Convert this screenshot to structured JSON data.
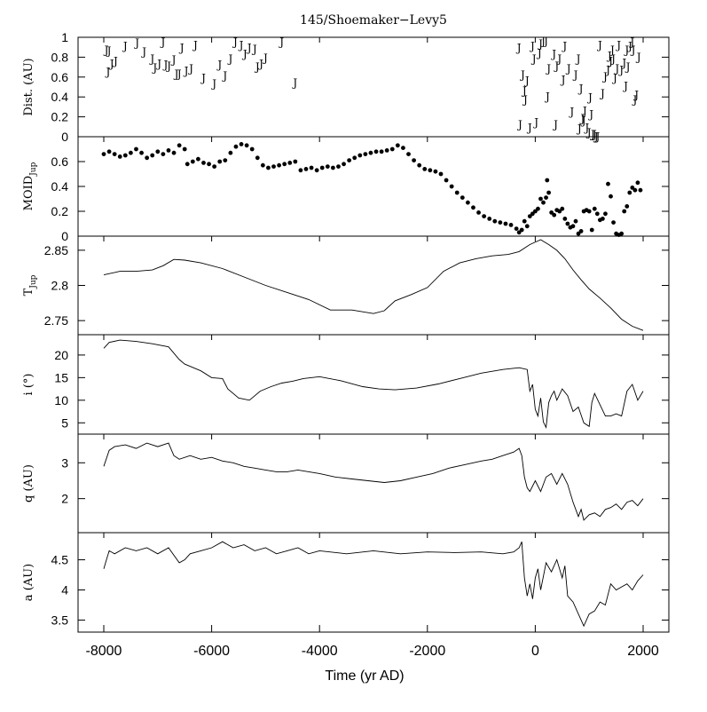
{
  "title": "145/Shoemaker−Levy5",
  "xlabel": "Time (yr AD)",
  "x_ticks": [
    "-8000",
    "-6000",
    "-4000",
    "-2000",
    "0",
    "2000"
  ],
  "chart_data": [
    {
      "type": "scatter",
      "panel": "dist",
      "ylabel": "Dist. (AU)",
      "xlim": [
        -8000,
        2000
      ],
      "ylim": [
        0,
        1
      ],
      "yticks": [
        "0",
        "0.2",
        "0.4",
        "0.6",
        "0.8",
        "1"
      ],
      "marker_label": "J",
      "points": [
        [
          -7950,
          0.88
        ],
        [
          -7900,
          0.87
        ],
        [
          -7920,
          0.66
        ],
        [
          -7850,
          0.74
        ],
        [
          -7780,
          0.77
        ],
        [
          -7600,
          0.92
        ],
        [
          -7380,
          0.95
        ],
        [
          -7250,
          0.86
        ],
        [
          -7100,
          0.79
        ],
        [
          -7050,
          0.7
        ],
        [
          -6970,
          0.74
        ],
        [
          -6900,
          0.96
        ],
        [
          -6850,
          0.73
        ],
        [
          -6790,
          0.72
        ],
        [
          -6700,
          0.78
        ],
        [
          -6650,
          0.64
        ],
        [
          -6600,
          0.64
        ],
        [
          -6550,
          0.9
        ],
        [
          -6470,
          0.67
        ],
        [
          -6380,
          0.69
        ],
        [
          -6300,
          0.93
        ],
        [
          -6150,
          0.6
        ],
        [
          -5950,
          0.54
        ],
        [
          -5850,
          0.73
        ],
        [
          -5750,
          0.62
        ],
        [
          -5650,
          0.79
        ],
        [
          -5560,
          0.96
        ],
        [
          -5450,
          0.93
        ],
        [
          -5380,
          0.84
        ],
        [
          -5300,
          0.9
        ],
        [
          -5200,
          0.89
        ],
        [
          -5150,
          0.71
        ],
        [
          -5080,
          0.74
        ],
        [
          -5000,
          0.8
        ],
        [
          -4700,
          0.96
        ],
        [
          -4450,
          0.55
        ],
        [
          -280,
          0.13
        ],
        [
          -300,
          0.9
        ],
        [
          -230,
          0.63
        ],
        [
          -200,
          0.47
        ],
        [
          -180,
          0.38
        ],
        [
          -150,
          0.57
        ],
        [
          -100,
          0.1
        ],
        [
          -50,
          0.92
        ],
        [
          -20,
          0.79
        ],
        [
          20,
          0.15
        ],
        [
          80,
          0.85
        ],
        [
          100,
          0.94
        ],
        [
          150,
          0.97
        ],
        [
          200,
          0.97
        ],
        [
          230,
          0.41
        ],
        [
          250,
          0.69
        ],
        [
          350,
          0.84
        ],
        [
          380,
          0.13
        ],
        [
          400,
          0.72
        ],
        [
          450,
          0.79
        ],
        [
          520,
          0.58
        ],
        [
          550,
          0.92
        ],
        [
          620,
          0.69
        ],
        [
          680,
          0.26
        ],
        [
          750,
          0.63
        ],
        [
          800,
          0.79
        ],
        [
          820,
          0.09
        ],
        [
          850,
          0.49
        ],
        [
          880,
          0.19
        ],
        [
          900,
          0.17
        ],
        [
          920,
          0.27
        ],
        [
          960,
          0.1
        ],
        [
          1000,
          0.05
        ],
        [
          1020,
          0.4
        ],
        [
          1040,
          0.23
        ],
        [
          1070,
          0.03
        ],
        [
          1100,
          0.03
        ],
        [
          1130,
          0.01
        ],
        [
          1160,
          0.01
        ],
        [
          1200,
          0.93
        ],
        [
          1250,
          0.44
        ],
        [
          1300,
          0.61
        ],
        [
          1350,
          0.68
        ],
        [
          1380,
          0.82
        ],
        [
          1400,
          0.77
        ],
        [
          1430,
          0.88
        ],
        [
          1450,
          0.79
        ],
        [
          1480,
          0.6
        ],
        [
          1520,
          0.69
        ],
        [
          1550,
          0.93
        ],
        [
          1600,
          0.68
        ],
        [
          1650,
          0.75
        ],
        [
          1680,
          0.52
        ],
        [
          1700,
          0.88
        ],
        [
          1720,
          0.71
        ],
        [
          1760,
          0.92
        ],
        [
          1800,
          0.96
        ],
        [
          1820,
          0.88
        ],
        [
          1850,
          0.38
        ],
        [
          1880,
          0.43
        ],
        [
          1920,
          0.81
        ]
      ]
    },
    {
      "type": "scatter",
      "panel": "moid",
      "ylabel": "MOID",
      "ylabel_sub": "Jup",
      "xlim": [
        -8000,
        2000
      ],
      "ylim": [
        0,
        0.8
      ],
      "yticks": [
        "0",
        "0.2",
        "0.4",
        "0.6"
      ],
      "points": [
        [
          -8000,
          0.66
        ],
        [
          -7900,
          0.68
        ],
        [
          -7800,
          0.66
        ],
        [
          -7700,
          0.64
        ],
        [
          -7600,
          0.65
        ],
        [
          -7500,
          0.67
        ],
        [
          -7400,
          0.7
        ],
        [
          -7300,
          0.67
        ],
        [
          -7200,
          0.63
        ],
        [
          -7100,
          0.65
        ],
        [
          -7000,
          0.68
        ],
        [
          -6900,
          0.66
        ],
        [
          -6800,
          0.69
        ],
        [
          -6700,
          0.67
        ],
        [
          -6600,
          0.73
        ],
        [
          -6500,
          0.7
        ],
        [
          -6450,
          0.58
        ],
        [
          -6350,
          0.6
        ],
        [
          -6250,
          0.62
        ],
        [
          -6150,
          0.59
        ],
        [
          -6050,
          0.58
        ],
        [
          -5950,
          0.56
        ],
        [
          -5850,
          0.6
        ],
        [
          -5750,
          0.61
        ],
        [
          -5650,
          0.67
        ],
        [
          -5550,
          0.72
        ],
        [
          -5450,
          0.74
        ],
        [
          -5350,
          0.73
        ],
        [
          -5250,
          0.7
        ],
        [
          -5150,
          0.63
        ],
        [
          -5050,
          0.57
        ],
        [
          -4950,
          0.55
        ],
        [
          -4850,
          0.56
        ],
        [
          -4750,
          0.57
        ],
        [
          -4650,
          0.58
        ],
        [
          -4550,
          0.59
        ],
        [
          -4450,
          0.6
        ],
        [
          -4350,
          0.53
        ],
        [
          -4250,
          0.54
        ],
        [
          -4150,
          0.55
        ],
        [
          -4050,
          0.53
        ],
        [
          -3950,
          0.55
        ],
        [
          -3850,
          0.56
        ],
        [
          -3750,
          0.55
        ],
        [
          -3650,
          0.56
        ],
        [
          -3550,
          0.58
        ],
        [
          -3450,
          0.61
        ],
        [
          -3350,
          0.63
        ],
        [
          -3250,
          0.65
        ],
        [
          -3150,
          0.66
        ],
        [
          -3050,
          0.67
        ],
        [
          -2950,
          0.68
        ],
        [
          -2850,
          0.68
        ],
        [
          -2750,
          0.69
        ],
        [
          -2650,
          0.7
        ],
        [
          -2550,
          0.73
        ],
        [
          -2450,
          0.71
        ],
        [
          -2350,
          0.66
        ],
        [
          -2250,
          0.61
        ],
        [
          -2150,
          0.57
        ],
        [
          -2050,
          0.54
        ],
        [
          -1950,
          0.53
        ],
        [
          -1850,
          0.52
        ],
        [
          -1750,
          0.5
        ],
        [
          -1650,
          0.45
        ],
        [
          -1550,
          0.4
        ],
        [
          -1450,
          0.35
        ],
        [
          -1350,
          0.31
        ],
        [
          -1250,
          0.27
        ],
        [
          -1150,
          0.23
        ],
        [
          -1050,
          0.19
        ],
        [
          -950,
          0.16
        ],
        [
          -850,
          0.14
        ],
        [
          -750,
          0.12
        ],
        [
          -650,
          0.11
        ],
        [
          -550,
          0.1
        ],
        [
          -450,
          0.09
        ],
        [
          -350,
          0.06
        ],
        [
          -300,
          0.03
        ],
        [
          -250,
          0.05
        ],
        [
          -200,
          0.12
        ],
        [
          -150,
          0.08
        ],
        [
          -100,
          0.16
        ],
        [
          -50,
          0.18
        ],
        [
          0,
          0.2
        ],
        [
          50,
          0.22
        ],
        [
          100,
          0.3
        ],
        [
          150,
          0.27
        ],
        [
          200,
          0.31
        ],
        [
          220,
          0.45
        ],
        [
          250,
          0.35
        ],
        [
          300,
          0.19
        ],
        [
          350,
          0.17
        ],
        [
          400,
          0.21
        ],
        [
          450,
          0.2
        ],
        [
          500,
          0.22
        ],
        [
          550,
          0.14
        ],
        [
          600,
          0.1
        ],
        [
          650,
          0.07
        ],
        [
          700,
          0.08
        ],
        [
          750,
          0.12
        ],
        [
          800,
          0.02
        ],
        [
          850,
          0.04
        ],
        [
          900,
          0.2
        ],
        [
          950,
          0.21
        ],
        [
          1000,
          0.2
        ],
        [
          1050,
          0.05
        ],
        [
          1100,
          0.22
        ],
        [
          1150,
          0.18
        ],
        [
          1200,
          0.13
        ],
        [
          1250,
          0.14
        ],
        [
          1300,
          0.18
        ],
        [
          1350,
          0.42
        ],
        [
          1400,
          0.32
        ],
        [
          1450,
          0.11
        ],
        [
          1500,
          0.02
        ],
        [
          1550,
          0.01
        ],
        [
          1600,
          0.02
        ],
        [
          1650,
          0.2
        ],
        [
          1700,
          0.24
        ],
        [
          1750,
          0.35
        ],
        [
          1800,
          0.39
        ],
        [
          1850,
          0.37
        ],
        [
          1900,
          0.43
        ],
        [
          1950,
          0.37
        ]
      ]
    },
    {
      "type": "line",
      "panel": "tjup",
      "ylabel": "T",
      "ylabel_sub": "Jup",
      "xlim": [
        -8000,
        2000
      ],
      "ylim": [
        2.73,
        2.87
      ],
      "yticks": [
        "2.75",
        "2.8",
        "2.85"
      ],
      "x": [
        -8000,
        -7700,
        -7400,
        -7100,
        -6900,
        -6700,
        -6500,
        -6200,
        -5800,
        -5400,
        -5000,
        -4600,
        -4200,
        -3800,
        -3400,
        -3000,
        -2800,
        -2600,
        -2300,
        -2000,
        -1700,
        -1400,
        -1100,
        -800,
        -500,
        -300,
        -100,
        100,
        250,
        400,
        550,
        700,
        850,
        1000,
        1200,
        1400,
        1600,
        1800,
        2000
      ],
      "y": [
        2.815,
        2.82,
        2.82,
        2.822,
        2.828,
        2.837,
        2.836,
        2.832,
        2.824,
        2.812,
        2.8,
        2.79,
        2.78,
        2.765,
        2.765,
        2.76,
        2.764,
        2.778,
        2.787,
        2.797,
        2.82,
        2.832,
        2.838,
        2.842,
        2.844,
        2.848,
        2.858,
        2.865,
        2.858,
        2.85,
        2.838,
        2.822,
        2.808,
        2.795,
        2.782,
        2.768,
        2.752,
        2.742,
        2.736
      ]
    },
    {
      "type": "line",
      "panel": "incl",
      "ylabel": "i (°)",
      "xlim": [
        -8000,
        2000
      ],
      "ylim": [
        2.5,
        24.5
      ],
      "yticks": [
        "5",
        "10",
        "15",
        "20"
      ],
      "x": [
        -8000,
        -7900,
        -7700,
        -7400,
        -7100,
        -6800,
        -6600,
        -6500,
        -6300,
        -6200,
        -6000,
        -5800,
        -5700,
        -5500,
        -5300,
        -5100,
        -4900,
        -4700,
        -4500,
        -4300,
        -4000,
        -3600,
        -3200,
        -2900,
        -2600,
        -2200,
        -1800,
        -1400,
        -1000,
        -600,
        -300,
        -150,
        -100,
        -50,
        0,
        50,
        100,
        150,
        200,
        250,
        300,
        350,
        400,
        500,
        600,
        700,
        800,
        900,
        1000,
        1050,
        1100,
        1200,
        1300,
        1400,
        1500,
        1600,
        1700,
        1800,
        1900,
        2000
      ],
      "y": [
        21.5,
        22.8,
        23.3,
        23.0,
        22.5,
        21.8,
        19.0,
        18.0,
        17.0,
        16.5,
        15.0,
        14.8,
        12.5,
        10.5,
        10.0,
        12.0,
        13.0,
        13.8,
        14.2,
        14.8,
        15.2,
        14.3,
        13.0,
        12.5,
        12.3,
        12.7,
        13.6,
        14.8,
        16.0,
        16.8,
        17.2,
        16.8,
        12.0,
        13.5,
        8.0,
        6.5,
        10.5,
        5.2,
        4.0,
        9.5,
        11.0,
        12.0,
        10.0,
        12.5,
        11.0,
        7.5,
        8.5,
        5.0,
        4.2,
        9.5,
        11.5,
        9.0,
        6.5,
        6.5,
        7.0,
        6.5,
        12.0,
        13.5,
        10.0,
        12.0
      ]
    },
    {
      "type": "line",
      "panel": "q",
      "ylabel": "q (AU)",
      "xlim": [
        -8000,
        2000
      ],
      "ylim": [
        1.05,
        3.8
      ],
      "yticks": [
        "2",
        "3"
      ],
      "x": [
        -8000,
        -7900,
        -7800,
        -7600,
        -7400,
        -7200,
        -7000,
        -6800,
        -6700,
        -6600,
        -6400,
        -6200,
        -6000,
        -5800,
        -5600,
        -5400,
        -5200,
        -5000,
        -4800,
        -4600,
        -4400,
        -4200,
        -4000,
        -3700,
        -3400,
        -3100,
        -2800,
        -2500,
        -2200,
        -1900,
        -1600,
        -1300,
        -1000,
        -800,
        -600,
        -500,
        -400,
        -300,
        -250,
        -200,
        -150,
        -100,
        0,
        100,
        200,
        300,
        400,
        500,
        600,
        700,
        800,
        850,
        900,
        1000,
        1100,
        1200,
        1300,
        1400,
        1500,
        1600,
        1700,
        1800,
        1900,
        2000
      ],
      "y": [
        2.9,
        3.35,
        3.45,
        3.5,
        3.4,
        3.55,
        3.45,
        3.55,
        3.2,
        3.1,
        3.2,
        3.1,
        3.15,
        3.05,
        3.0,
        2.9,
        2.85,
        2.8,
        2.75,
        2.75,
        2.8,
        2.75,
        2.7,
        2.6,
        2.55,
        2.5,
        2.45,
        2.5,
        2.6,
        2.7,
        2.85,
        2.95,
        3.05,
        3.1,
        3.2,
        3.25,
        3.3,
        3.4,
        3.2,
        2.6,
        2.3,
        2.2,
        2.5,
        2.2,
        2.6,
        2.7,
        2.4,
        2.7,
        2.4,
        1.9,
        1.5,
        1.7,
        1.4,
        1.55,
        1.6,
        1.5,
        1.7,
        1.75,
        1.85,
        1.7,
        1.9,
        1.95,
        1.8,
        2.0
      ]
    },
    {
      "type": "line",
      "panel": "a",
      "ylabel": "a (AU)",
      "xlim": [
        -8000,
        2000
      ],
      "ylim": [
        3.3,
        4.95
      ],
      "yticks": [
        "3.5",
        "4",
        "4.5"
      ],
      "x": [
        -8000,
        -7950,
        -7900,
        -7800,
        -7600,
        -7400,
        -7200,
        -7000,
        -6800,
        -6600,
        -6500,
        -6400,
        -6200,
        -6000,
        -5800,
        -5600,
        -5400,
        -5200,
        -5000,
        -4800,
        -4600,
        -4400,
        -4200,
        -4000,
        -3500,
        -3000,
        -2500,
        -2000,
        -1500,
        -1000,
        -600,
        -400,
        -300,
        -250,
        -200,
        -150,
        -100,
        -50,
        0,
        50,
        100,
        200,
        300,
        400,
        500,
        550,
        600,
        700,
        800,
        850,
        900,
        1000,
        1100,
        1200,
        1300,
        1400,
        1500,
        1600,
        1700,
        1800,
        1900,
        2000
      ],
      "y": [
        4.35,
        4.5,
        4.65,
        4.6,
        4.7,
        4.65,
        4.7,
        4.6,
        4.7,
        4.45,
        4.5,
        4.6,
        4.65,
        4.7,
        4.8,
        4.7,
        4.75,
        4.65,
        4.7,
        4.6,
        4.65,
        4.7,
        4.6,
        4.65,
        4.6,
        4.65,
        4.6,
        4.63,
        4.62,
        4.63,
        4.6,
        4.63,
        4.7,
        4.8,
        4.2,
        3.9,
        4.1,
        3.85,
        4.2,
        4.35,
        4.0,
        4.45,
        4.3,
        4.5,
        4.2,
        4.4,
        3.9,
        3.8,
        3.6,
        3.5,
        3.4,
        3.6,
        3.65,
        3.8,
        3.75,
        4.1,
        4.0,
        4.05,
        4.1,
        4.0,
        4.15,
        4.25
      ]
    }
  ]
}
